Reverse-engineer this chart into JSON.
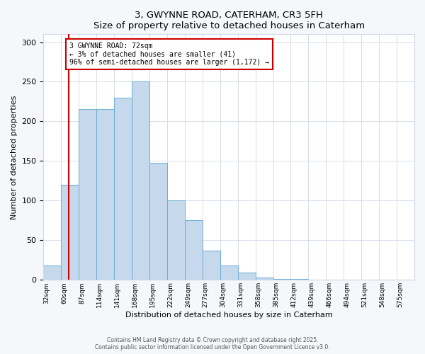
{
  "title": "3, GWYNNE ROAD, CATERHAM, CR3 5FH",
  "subtitle": "Size of property relative to detached houses in Caterham",
  "xlabel": "Distribution of detached houses by size in Caterham",
  "ylabel": "Number of detached properties",
  "bar_labels": [
    "32sqm",
    "60sqm",
    "87sqm",
    "114sqm",
    "141sqm",
    "168sqm",
    "195sqm",
    "222sqm",
    "249sqm",
    "277sqm",
    "304sqm",
    "331sqm",
    "358sqm",
    "385sqm",
    "412sqm",
    "439sqm",
    "466sqm",
    "494sqm",
    "521sqm",
    "548sqm",
    "575sqm"
  ],
  "bar_values": [
    18,
    120,
    216,
    216,
    230,
    250,
    148,
    100,
    75,
    37,
    18,
    9,
    3,
    1,
    1,
    0,
    0,
    0,
    0,
    0,
    0
  ],
  "bin_starts": [
    32,
    60,
    87,
    114,
    141,
    168,
    195,
    222,
    249,
    277,
    304,
    331,
    358,
    385,
    412,
    439,
    466,
    494,
    521,
    548,
    575
  ],
  "bar_color": "#c5d8ec",
  "bar_edge_color": "#6aaed6",
  "vline_x": 72,
  "vline_color": "#cc0000",
  "ylim": [
    0,
    310
  ],
  "yticks": [
    0,
    50,
    100,
    150,
    200,
    250,
    300
  ],
  "annotation_title": "3 GWYNNE ROAD: 72sqm",
  "annotation_line1": "← 3% of detached houses are smaller (41)",
  "annotation_line2": "96% of semi-detached houses are larger (1,172) →",
  "annotation_box_color": "#cc0000",
  "footer1": "Contains HM Land Registry data © Crown copyright and database right 2025.",
  "footer2": "Contains public sector information licensed under the Open Government Licence v3.0.",
  "background_color": "#f5f7fa",
  "plot_bg_color": "#ffffff",
  "grid_color": "#d0d8e8"
}
